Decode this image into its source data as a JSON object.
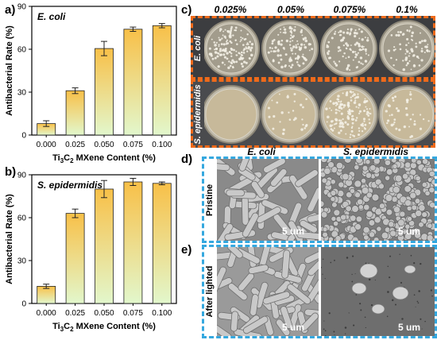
{
  "panels": {
    "a": "a)",
    "b": "b)",
    "c": "c)",
    "d": "d)",
    "e": "e)"
  },
  "chart_data": [
    {
      "type": "bar",
      "panel": "a",
      "title": "E. coli",
      "categories": [
        "0.000",
        "0.025",
        "0.050",
        "0.075",
        "0.100"
      ],
      "values": [
        8,
        31,
        60.5,
        74,
        76.5
      ],
      "errors": [
        2,
        2,
        5,
        1.5,
        1.5
      ],
      "ylabel": "Antibacterial Rate (%)",
      "xlabel_parts": [
        "Ti",
        "3",
        "C",
        "2",
        " MXene Content (%)"
      ],
      "ylim": [
        0,
        90
      ],
      "yticks": [
        "0",
        "30",
        "60",
        "90"
      ]
    },
    {
      "type": "bar",
      "panel": "b",
      "title": "S. epidermidis",
      "categories": [
        "0.000",
        "0.025",
        "0.050",
        "0.075",
        "0.100"
      ],
      "values": [
        12,
        63,
        80,
        85,
        84
      ],
      "errors": [
        1.5,
        3,
        6,
        2.5,
        1
      ],
      "ylabel": "Antibacterial Rate (%)",
      "xlabel_parts": [
        "Ti",
        "3",
        "C",
        "2",
        " MXene Content (%)"
      ],
      "ylim": [
        0,
        90
      ],
      "yticks": [
        "0",
        "30",
        "60",
        "90"
      ]
    }
  ],
  "plates": {
    "concentrations": [
      "0.025%",
      "0.05%",
      "0.075%",
      "0.1%"
    ],
    "rows": [
      "E. coli",
      "S. epidermidis"
    ]
  },
  "sem": {
    "columns": [
      "E. coli",
      "S. epidermidis"
    ],
    "rows": [
      "Pristine",
      "After lighted"
    ],
    "scale": "5 um"
  },
  "colors": {
    "bar_top": "#f8c048",
    "bar_bottom": "#e2f7cc",
    "plate_border": "#ef6a1a",
    "sem_border": "#35a8df"
  }
}
